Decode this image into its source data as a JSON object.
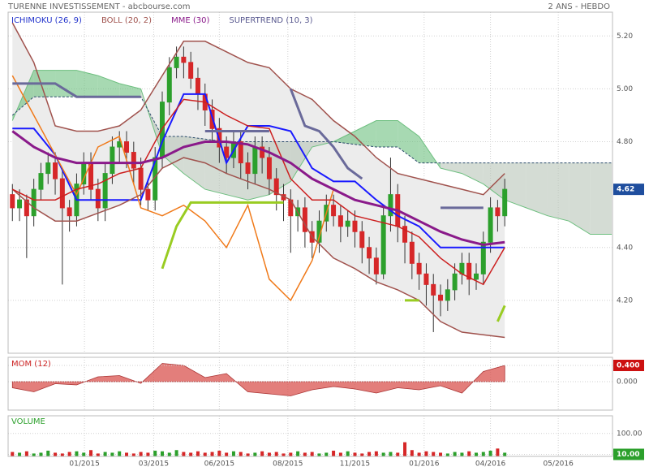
{
  "chart_data": [
    {
      "type": "candlestick",
      "title": "TURENNE INVESTISSEMENT - abcbourse.com",
      "subtitle": "2 ANS - HEBDO",
      "up_color": "#2ca02c",
      "down_color": "#d62728",
      "last_color": "#1f4e9e",
      "open": [
        4.6,
        4.55,
        4.58,
        4.52,
        4.62,
        4.68,
        4.72,
        4.66,
        4.55,
        4.52,
        4.64,
        4.72,
        4.62,
        4.55,
        4.68,
        4.78,
        4.8,
        4.76,
        4.7,
        4.62,
        4.58,
        4.74,
        4.95,
        5.08,
        5.12,
        5.1,
        5.04,
        4.98,
        4.92,
        4.85,
        4.78,
        4.74,
        4.8,
        4.72,
        4.68,
        4.78,
        4.74,
        4.66,
        4.6,
        4.58,
        4.52,
        4.55,
        4.46,
        4.42,
        4.5,
        4.56,
        4.52,
        4.48,
        4.5,
        4.46,
        4.4,
        4.36,
        4.3,
        4.52,
        4.6,
        4.48,
        4.42,
        4.34,
        4.3,
        4.26,
        4.22,
        4.2,
        4.24,
        4.3,
        4.34,
        4.28,
        4.3,
        4.42,
        4.55,
        4.52
      ],
      "high": [
        4.64,
        4.62,
        4.6,
        4.66,
        4.72,
        4.76,
        4.76,
        4.7,
        4.58,
        4.68,
        4.76,
        4.76,
        4.66,
        4.72,
        4.82,
        4.84,
        4.84,
        4.8,
        4.74,
        4.66,
        4.78,
        4.99,
        5.12,
        5.16,
        5.16,
        5.14,
        5.08,
        5.02,
        4.96,
        4.89,
        4.82,
        4.84,
        4.84,
        4.76,
        4.82,
        4.82,
        4.78,
        4.7,
        4.64,
        4.62,
        4.58,
        4.59,
        4.5,
        4.54,
        4.6,
        4.6,
        4.56,
        4.54,
        4.54,
        4.5,
        4.44,
        4.4,
        4.56,
        4.74,
        4.64,
        4.52,
        4.46,
        4.38,
        4.34,
        4.3,
        4.26,
        4.28,
        4.34,
        4.38,
        4.38,
        4.34,
        4.46,
        4.59,
        4.58,
        4.66
      ],
      "low": [
        4.5,
        4.5,
        4.36,
        4.48,
        4.58,
        4.64,
        4.6,
        4.26,
        4.46,
        4.48,
        4.6,
        4.58,
        4.5,
        4.5,
        4.64,
        4.72,
        4.7,
        4.64,
        4.56,
        4.54,
        4.54,
        4.7,
        4.9,
        5.04,
        5.04,
        5.0,
        4.92,
        4.86,
        4.8,
        4.72,
        4.68,
        4.7,
        4.66,
        4.62,
        4.64,
        4.68,
        4.6,
        4.54,
        4.5,
        4.38,
        4.46,
        4.4,
        4.36,
        4.38,
        4.46,
        4.48,
        4.42,
        4.44,
        4.4,
        4.34,
        4.3,
        4.26,
        4.28,
        4.46,
        4.42,
        4.34,
        4.28,
        4.24,
        4.18,
        4.08,
        4.14,
        4.16,
        4.2,
        4.26,
        4.22,
        4.24,
        4.26,
        4.38,
        4.46,
        4.48
      ],
      "close": [
        4.55,
        4.58,
        4.52,
        4.62,
        4.68,
        4.72,
        4.66,
        4.55,
        4.52,
        4.64,
        4.72,
        4.62,
        4.55,
        4.68,
        4.78,
        4.8,
        4.76,
        4.7,
        4.62,
        4.58,
        4.74,
        4.95,
        5.08,
        5.12,
        5.1,
        5.04,
        4.98,
        4.92,
        4.85,
        4.78,
        4.74,
        4.8,
        4.72,
        4.68,
        4.78,
        4.74,
        4.66,
        4.6,
        4.58,
        4.52,
        4.55,
        4.46,
        4.42,
        4.5,
        4.56,
        4.52,
        4.48,
        4.5,
        4.46,
        4.4,
        4.36,
        4.3,
        4.52,
        4.6,
        4.48,
        4.42,
        4.34,
        4.3,
        4.26,
        4.22,
        4.2,
        4.24,
        4.3,
        4.34,
        4.28,
        4.3,
        4.42,
        4.55,
        4.52,
        4.62
      ],
      "xlim": [
        -0.6,
        84.1
      ],
      "xticks": [
        {
          "value": 10.1,
          "label": "01/2015"
        },
        {
          "value": 19.8,
          "label": "03/2015"
        },
        {
          "value": 29,
          "label": "06/2015"
        },
        {
          "value": 38.6,
          "label": "08/2015"
        },
        {
          "value": 48,
          "label": "11/2015"
        },
        {
          "value": 57.7,
          "label": "01/2016"
        },
        {
          "value": 67,
          "label": "04/2016"
        },
        {
          "value": 76.5,
          "label": "05/2016"
        }
      ],
      "ylim": [
        4.0,
        5.29
      ],
      "yticks": [
        {
          "value": 4.2,
          "label": "4.20"
        },
        {
          "value": 4.4,
          "label": "4.40"
        },
        {
          "value": 4.8,
          "label": "4.80"
        },
        {
          "value": 5.0,
          "label": "5.00"
        },
        {
          "value": 5.2,
          "label": "5.20"
        }
      ],
      "grid": true,
      "indicators": [
        {
          "name": "ICHIMOKU (26, 9)",
          "color": "#2233cc",
          "lines": [
            {
              "color": "#1a1aff",
              "width": 2,
              "x": [
                0,
                3,
                6,
                9,
                12,
                15,
                18,
                21,
                24,
                27,
                30,
                33,
                36,
                39,
                42,
                45,
                48,
                51,
                54,
                57,
                60,
                63,
                66,
                69
              ],
              "values": [
                4.85,
                4.85,
                4.75,
                4.58,
                4.58,
                4.58,
                4.58,
                4.8,
                4.98,
                4.98,
                4.72,
                4.86,
                4.86,
                4.84,
                4.7,
                4.65,
                4.65,
                4.58,
                4.52,
                4.48,
                4.4,
                4.4,
                4.4,
                4.4
              ]
            },
            {
              "color": "#f07a1a",
              "width": 1.5,
              "x": [
                0,
                3,
                6,
                9,
                12,
                15,
                18,
                21,
                24,
                27,
                30,
                33,
                36,
                39,
                42,
                45
              ],
              "values": [
                5.05,
                4.9,
                4.75,
                4.6,
                4.78,
                4.82,
                4.55,
                4.52,
                4.56,
                4.5,
                4.4,
                4.56,
                4.28,
                4.2,
                4.35,
                4.62
              ]
            }
          ],
          "cloud": {
            "up_color": "#6dbf7f",
            "down_color": "#b8c4b8",
            "line_color": "#2a4a6a",
            "x": [
              0,
              3,
              6,
              9,
              12,
              15,
              18,
              21,
              24,
              27,
              30,
              33,
              36,
              39,
              42,
              45,
              48,
              51,
              54,
              57,
              60,
              63,
              66,
              69,
              72,
              75,
              78,
              81,
              84
            ],
            "span_a": [
              4.88,
              5.07,
              5.07,
              5.07,
              5.05,
              5.02,
              5.0,
              4.75,
              4.68,
              4.62,
              4.6,
              4.58,
              4.6,
              4.65,
              4.78,
              4.8,
              4.84,
              4.88,
              4.88,
              4.82,
              4.7,
              4.68,
              4.64,
              4.58,
              4.55,
              4.52,
              4.5,
              4.45,
              4.45
            ],
            "span_b": [
              4.9,
              4.97,
              4.97,
              4.97,
              4.97,
              4.97,
              4.97,
              4.82,
              4.82,
              4.81,
              4.8,
              4.8,
              4.8,
              4.8,
              4.8,
              4.8,
              4.79,
              4.78,
              4.78,
              4.72,
              4.72,
              4.72,
              4.72,
              4.72,
              4.72,
              4.72,
              4.72,
              4.72,
              4.72
            ]
          }
        },
        {
          "name": "BOLL (20, 2)",
          "color": "#a0524d",
          "fill": "#ececec",
          "lines": [
            {
              "color": "#a0524d",
              "width": 1.5,
              "x": [
                0,
                3,
                6,
                9,
                12,
                15,
                18,
                21,
                24,
                27,
                30,
                33,
                36,
                39,
                42,
                45,
                48,
                51,
                54,
                57,
                60,
                63,
                66,
                69
              ],
              "values": [
                5.25,
                5.1,
                4.86,
                4.84,
                4.84,
                4.86,
                4.92,
                5.05,
                5.18,
                5.18,
                5.14,
                5.1,
                5.08,
                5.0,
                4.96,
                4.88,
                4.82,
                4.74,
                4.68,
                4.66,
                4.64,
                4.62,
                4.6,
                4.68
              ]
            },
            {
              "color": "#a0524d",
              "width": 1.5,
              "x": [
                0,
                3,
                6,
                9,
                12,
                15,
                18,
                21,
                24,
                27,
                30,
                33,
                36,
                39,
                42,
                45,
                48,
                51,
                54,
                57,
                60,
                63,
                66,
                69
              ],
              "values": [
                4.62,
                4.55,
                4.5,
                4.5,
                4.53,
                4.56,
                4.6,
                4.7,
                4.74,
                4.72,
                4.68,
                4.65,
                4.62,
                4.58,
                4.44,
                4.36,
                4.32,
                4.27,
                4.24,
                4.2,
                4.12,
                4.08,
                4.07,
                4.06
              ]
            },
            {
              "color": "#cc1f1f",
              "width": 1.5,
              "x": [
                0,
                3,
                6,
                9,
                12,
                15,
                18,
                21,
                24,
                27,
                30,
                33,
                36,
                39,
                42,
                45,
                48,
                51,
                54,
                57,
                60,
                63,
                66,
                69
              ],
              "values": [
                4.62,
                4.58,
                4.58,
                4.62,
                4.64,
                4.68,
                4.7,
                4.85,
                4.96,
                4.95,
                4.9,
                4.86,
                4.85,
                4.66,
                4.58,
                4.58,
                4.52,
                4.5,
                4.48,
                4.44,
                4.36,
                4.3,
                4.26,
                4.4
              ]
            }
          ]
        },
        {
          "name": "MME (30)",
          "color": "#8a1a8a",
          "lines": [
            {
              "color": "#8a1a8a",
              "width": 3,
              "x": [
                0,
                3,
                6,
                9,
                12,
                15,
                18,
                21,
                24,
                27,
                30,
                33,
                36,
                39,
                42,
                45,
                48,
                51,
                54,
                57,
                60,
                63,
                66,
                69
              ],
              "values": [
                4.84,
                4.78,
                4.74,
                4.72,
                4.72,
                4.72,
                4.72,
                4.74,
                4.78,
                4.8,
                4.8,
                4.79,
                4.76,
                4.72,
                4.66,
                4.62,
                4.58,
                4.56,
                4.54,
                4.5,
                4.46,
                4.43,
                4.41,
                4.42
              ]
            }
          ]
        },
        {
          "name": "SUPERTREND (10, 3)",
          "color": "#5a5a90",
          "lines": [
            {
              "color": "#6a6a9a",
              "width": 3,
              "x": [
                0,
                3,
                6,
                9,
                12,
                15,
                18,
                19,
                27,
                30,
                33,
                36,
                37,
                39,
                41,
                43,
                45,
                47,
                49,
                50,
                60,
                63,
                66
              ],
              "values": [
                5.02,
                5.02,
                5.02,
                4.97,
                4.97,
                4.97,
                4.97,
                null,
                4.84,
                4.84,
                4.84,
                4.84,
                null,
                5.0,
                4.86,
                4.84,
                4.78,
                4.7,
                4.66,
                null,
                4.55,
                4.55,
                4.55
              ]
            },
            {
              "color": "#99cc22",
              "width": 3,
              "x": [
                21,
                23,
                25,
                27,
                32,
                38,
                39,
                55,
                57,
                58,
                68,
                69
              ],
              "values": [
                4.32,
                4.48,
                4.57,
                4.57,
                4.57,
                4.57,
                null,
                4.2,
                4.2,
                null,
                4.12,
                4.18
              ]
            }
          ]
        }
      ]
    },
    {
      "type": "area",
      "title": "MOM (12)",
      "color": "#d9534f",
      "x": [
        0,
        3,
        6,
        9,
        12,
        15,
        18,
        21,
        24,
        27,
        30,
        33,
        36,
        39,
        42,
        45,
        48,
        51,
        54,
        57,
        60,
        63,
        66,
        69
      ],
      "values": [
        -0.15,
        -0.25,
        -0.05,
        -0.08,
        0.12,
        0.15,
        -0.04,
        0.45,
        0.4,
        0.1,
        0.2,
        -0.25,
        -0.3,
        -0.35,
        -0.2,
        -0.12,
        -0.18,
        -0.28,
        -0.15,
        -0.2,
        -0.1,
        -0.28,
        0.25,
        0.4
      ],
      "xlim": [
        -0.6,
        84.1
      ],
      "ylim": [
        -0.7,
        0.6
      ],
      "yticks": [
        {
          "value": 0,
          "label": "0.000"
        },
        {
          "value": 0.4,
          "label": "0.400"
        }
      ]
    },
    {
      "type": "bar",
      "title": "VOLUME",
      "log": true,
      "values": [
        13,
        12,
        14,
        11,
        12,
        15,
        12,
        11,
        13,
        14,
        12,
        16,
        11,
        13,
        12,
        14,
        12,
        11,
        13,
        12,
        15,
        14,
        12,
        16,
        13,
        12,
        14,
        12,
        13,
        15,
        12,
        14,
        13,
        11,
        12,
        14,
        12,
        13,
        11,
        12,
        14,
        12,
        13,
        11,
        12,
        15,
        12,
        14,
        12,
        11,
        13,
        14,
        12,
        13,
        12,
        38,
        16,
        12,
        14,
        13,
        12,
        11,
        13,
        12,
        14,
        12,
        13,
        15,
        19,
        12
      ],
      "xlim": [
        -0.6,
        84.1
      ],
      "ylim": [
        8,
        700
      ],
      "yticks": [
        {
          "value": 10,
          "label": "10.00"
        },
        {
          "value": 100,
          "label": "100.00"
        }
      ]
    }
  ]
}
